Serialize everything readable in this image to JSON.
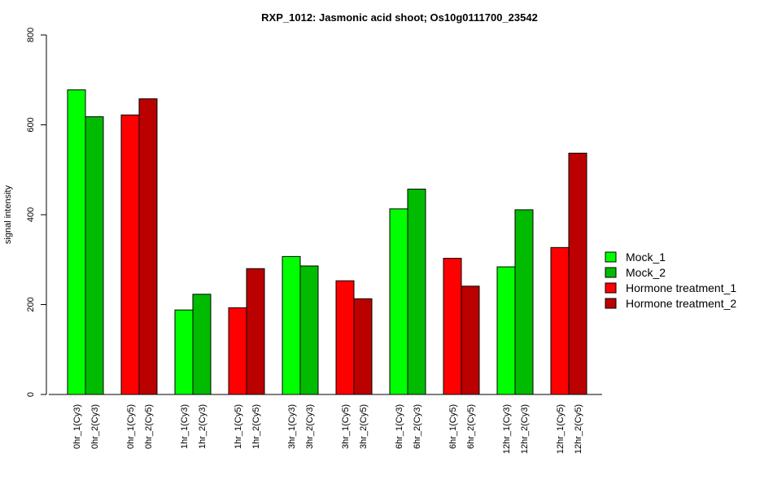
{
  "chart_data": {
    "type": "bar",
    "title": "RXP_1012: Jasmonic acid shoot; Os10g0111700_23542",
    "ylabel": "signal intensity",
    "ylim": [
      0,
      800
    ],
    "yticks": [
      0,
      200,
      400,
      600,
      800
    ],
    "legend_position": "right",
    "grid": false,
    "series_styles": [
      {
        "name": "Mock_1",
        "color": "#00ff00"
      },
      {
        "name": "Mock_2",
        "color": "#00bb00"
      },
      {
        "name": "Hormone treatment_1",
        "color": "#ff0000"
      },
      {
        "name": "Hormone treatment_2",
        "color": "#bb0000"
      }
    ],
    "bars": [
      {
        "label": "0hr_1(Cy3)",
        "value": 678,
        "series": 0
      },
      {
        "label": "0hr_2(Cy3)",
        "value": 618,
        "series": 1
      },
      {
        "label": "0hr_1(Cy5)",
        "value": 622,
        "series": 2
      },
      {
        "label": "0hr_2(Cy5)",
        "value": 658,
        "series": 3
      },
      {
        "label": "1hr_1(Cy3)",
        "value": 188,
        "series": 0
      },
      {
        "label": "1hr_2(Cy3)",
        "value": 223,
        "series": 1
      },
      {
        "label": "1hr_1(Cy5)",
        "value": 193,
        "series": 2
      },
      {
        "label": "1hr_2(Cy5)",
        "value": 280,
        "series": 3
      },
      {
        "label": "3hr_1(Cy3)",
        "value": 307,
        "series": 0
      },
      {
        "label": "3hr_2(Cy3)",
        "value": 286,
        "series": 1
      },
      {
        "label": "3hr_1(Cy5)",
        "value": 253,
        "series": 2
      },
      {
        "label": "3hr_2(Cy5)",
        "value": 213,
        "series": 3
      },
      {
        "label": "6hr_1(Cy3)",
        "value": 413,
        "series": 0
      },
      {
        "label": "6hr_2(Cy3)",
        "value": 457,
        "series": 1
      },
      {
        "label": "6hr_1(Cy5)",
        "value": 303,
        "series": 2
      },
      {
        "label": "6hr_2(Cy5)",
        "value": 241,
        "series": 3
      },
      {
        "label": "12hr_1(Cy3)",
        "value": 284,
        "series": 0
      },
      {
        "label": "12hr_2(Cy3)",
        "value": 411,
        "series": 1
      },
      {
        "label": "12hr_1(Cy5)",
        "value": 327,
        "series": 2
      },
      {
        "label": "12hr_2(Cy5)",
        "value": 537,
        "series": 3
      }
    ]
  }
}
